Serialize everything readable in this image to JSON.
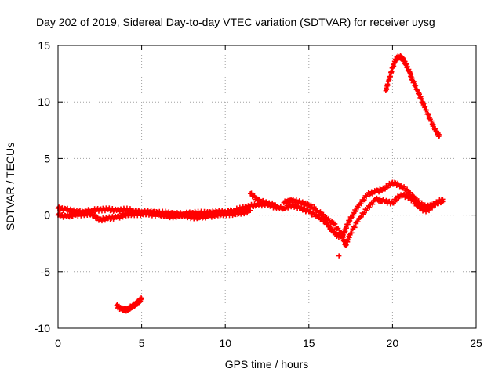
{
  "chart_data": {
    "type": "scatter",
    "title": "Day 202 of 2019, Sidereal Day-to-day VTEC variation (SDTVAR) for receiver uysg",
    "xlabel": "GPS time / hours",
    "ylabel": "SDTVAR / TECUs",
    "xlim": [
      0,
      25
    ],
    "ylim": [
      -10,
      15
    ],
    "xticks": [
      "0",
      "5",
      "10",
      "15",
      "20",
      "25"
    ],
    "yticks": [
      "-10",
      "-5",
      "0",
      "5",
      "10",
      "15"
    ],
    "xtick_values": [
      0,
      5,
      10,
      15,
      20,
      25
    ],
    "ytick_values": [
      -10,
      -5,
      0,
      5,
      10,
      15
    ],
    "grid": true,
    "marker": "plus",
    "series": [
      {
        "name": "band_a",
        "color": "#ff0000",
        "x": [
          0.0,
          0.5,
          1.0,
          1.5,
          2.0,
          2.5,
          3.0,
          3.5,
          4.0,
          4.5,
          5.0,
          5.5,
          6.0,
          6.5,
          7.0,
          7.5,
          8.0,
          8.5,
          9.0,
          9.5,
          10.0,
          10.5,
          11.0,
          11.5,
          12.0,
          12.5,
          13.0
        ],
        "y": [
          0.6,
          0.5,
          0.3,
          0.3,
          0.4,
          0.5,
          0.5,
          0.4,
          0.5,
          0.4,
          0.3,
          0.3,
          0.2,
          0.2,
          0.1,
          0.1,
          0.2,
          0.2,
          0.2,
          0.3,
          0.3,
          0.4,
          0.6,
          0.8,
          0.9,
          1.0,
          0.9
        ]
      },
      {
        "name": "band_b",
        "color": "#ff0000",
        "x": [
          0.0,
          0.5,
          1.0,
          1.5,
          2.0,
          2.5,
          3.0,
          3.5,
          4.0,
          4.5,
          5.0,
          5.5,
          6.0,
          6.5,
          7.0,
          7.5,
          8.0,
          8.5,
          9.0,
          9.5,
          10.0,
          10.5,
          11.0,
          11.5
        ],
        "y": [
          0.0,
          -0.1,
          0.0,
          0.1,
          0.1,
          -0.4,
          -0.3,
          -0.2,
          0.0,
          0.1,
          0.1,
          0.1,
          0.0,
          -0.1,
          -0.1,
          0.0,
          -0.2,
          -0.2,
          -0.1,
          0.0,
          0.1,
          0.1,
          0.2,
          0.4
        ]
      },
      {
        "name": "band_c",
        "color": "#ff0000",
        "x": [
          11.5,
          12.0,
          12.5,
          13.0,
          13.5,
          14.0,
          14.5,
          15.0,
          15.5,
          16.0,
          16.3,
          16.6,
          16.9,
          17.1,
          17.3,
          17.6,
          18.0,
          18.5,
          19.0,
          19.5,
          20.0,
          20.5,
          21.0,
          21.5,
          22.0,
          22.5,
          23.0
        ],
        "y": [
          1.9,
          1.3,
          1.0,
          0.7,
          0.6,
          0.9,
          0.6,
          0.3,
          -0.1,
          -0.6,
          -1.2,
          -1.7,
          -1.9,
          -1.6,
          -0.8,
          0.0,
          0.9,
          1.8,
          2.1,
          2.3,
          2.9,
          2.6,
          2.0,
          1.2,
          0.7,
          1.0,
          1.2
        ]
      },
      {
        "name": "band_d",
        "color": "#ff0000",
        "x": [
          13.5,
          14.0,
          14.5,
          15.0,
          15.5,
          16.0,
          16.5,
          17.0,
          17.2,
          17.5,
          18.0,
          18.5,
          19.0,
          19.5,
          20.0,
          20.5,
          21.0,
          21.5,
          22.0,
          22.5,
          23.0
        ],
        "y": [
          1.1,
          1.3,
          1.1,
          0.9,
          0.4,
          -0.2,
          -0.8,
          -1.8,
          -2.7,
          -1.6,
          -0.3,
          0.6,
          1.4,
          1.2,
          1.1,
          1.8,
          1.6,
          0.8,
          0.3,
          0.9,
          1.4
        ]
      },
      {
        "name": "band_e",
        "color": "#ff0000",
        "x": [
          19.6,
          19.8,
          20.0,
          20.2,
          20.4,
          20.6,
          20.8,
          21.0,
          21.2,
          21.5,
          21.8,
          22.0,
          22.3,
          22.6,
          22.8
        ],
        "y": [
          11.0,
          12.0,
          13.0,
          13.8,
          14.0,
          13.9,
          13.3,
          12.7,
          11.9,
          11.0,
          10.0,
          9.3,
          8.3,
          7.4,
          7.0
        ]
      },
      {
        "name": "band_f",
        "color": "#ff0000",
        "x": [
          3.5,
          3.8,
          4.0,
          4.2,
          4.4,
          4.6,
          4.8,
          5.0
        ],
        "y": [
          -8.0,
          -8.3,
          -8.4,
          -8.3,
          -8.1,
          -7.9,
          -7.7,
          -7.4
        ]
      },
      {
        "name": "outliers",
        "color": "#ff0000",
        "x": [
          16.8
        ],
        "y": [
          -3.6
        ]
      }
    ]
  }
}
